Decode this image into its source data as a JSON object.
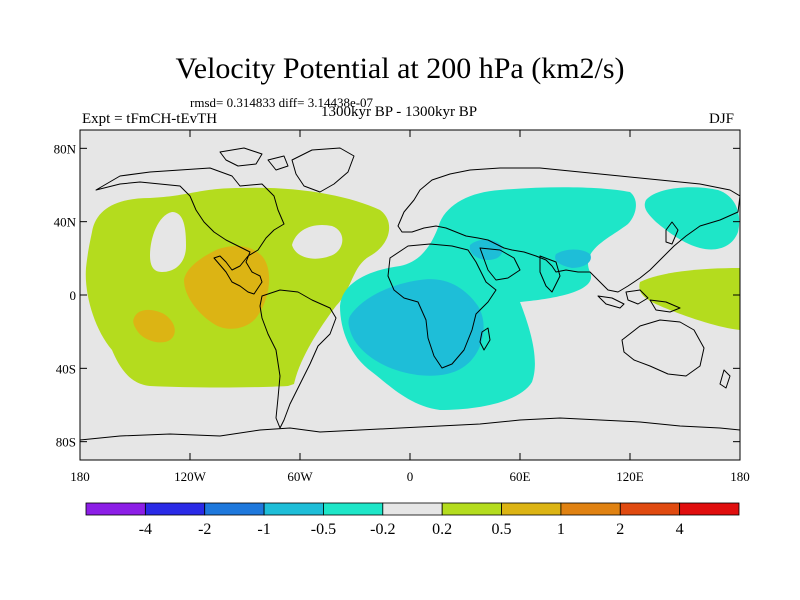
{
  "header": {
    "title": "Velocity Potential at 200 hPa (km2/s)",
    "stats": "rmsd= 0.314833  diff= 3.14438e-07",
    "experiment": "Expt = tFmCH-tEvTH",
    "period": "1300kyr BP - 1300kyr BP",
    "season": "DJF"
  },
  "axes": {
    "lat_ticks": [
      "80N",
      "40N",
      "0",
      "40S",
      "80S"
    ],
    "lon_ticks": [
      "180",
      "120W",
      "60W",
      "0",
      "60E",
      "120E",
      "180"
    ]
  },
  "colorbar": {
    "labels": [
      "-4",
      "-2",
      "-1",
      "-0.5",
      "-0.2",
      "0.2",
      "0.5",
      "1",
      "2",
      "4"
    ],
    "colors": [
      "#8c1ee6",
      "#2a2ae6",
      "#1e78dc",
      "#1ebed8",
      "#1ee6c8",
      "#e6e6e6",
      "#b4dc1e",
      "#dcb414",
      "#e08212",
      "#e04a10",
      "#e00e0e"
    ]
  },
  "fields": {
    "background": "#e6e6e6",
    "positive_weak": "#b4dc1e",
    "positive_mid": "#dcb414",
    "negative_weak": "#1ee6c8",
    "negative_mid": "#1ebed8"
  }
}
